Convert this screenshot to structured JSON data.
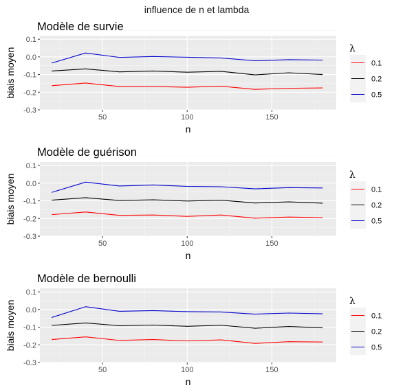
{
  "figure": {
    "title": "influence de n et lambda"
  },
  "chart_data": [
    {
      "type": "line",
      "title": "Modèle de survie",
      "xlabel": "n",
      "ylabel": "biais moyen",
      "x": [
        20,
        40,
        60,
        80,
        100,
        120,
        140,
        160,
        180
      ],
      "xticks": [
        50,
        100,
        150
      ],
      "yticks": [
        0.1,
        0.0,
        -0.1,
        -0.2,
        -0.3
      ],
      "ytick_labels": [
        "0.1",
        "0.0",
        "-0.1",
        "-0.2",
        "-0.3"
      ],
      "xlim": [
        13,
        188
      ],
      "ylim": [
        -0.3,
        0.12
      ],
      "grid": true,
      "legend": {
        "title": "λ",
        "position": "right"
      },
      "series": [
        {
          "name": "0.1",
          "color": "#ff0000",
          "values": [
            -0.163,
            -0.148,
            -0.168,
            -0.168,
            -0.172,
            -0.166,
            -0.184,
            -0.178,
            -0.176
          ]
        },
        {
          "name": "0.2",
          "color": "#000000",
          "values": [
            -0.08,
            -0.068,
            -0.085,
            -0.08,
            -0.087,
            -0.082,
            -0.102,
            -0.09,
            -0.1
          ]
        },
        {
          "name": "0.5",
          "color": "#0000cc",
          "values": [
            -0.035,
            0.022,
            -0.003,
            0.002,
            -0.002,
            -0.006,
            -0.022,
            -0.016,
            -0.018
          ]
        }
      ]
    },
    {
      "type": "line",
      "title": "Modèle de guérison",
      "xlabel": "n",
      "ylabel": "biais moyen",
      "x": [
        20,
        40,
        60,
        80,
        100,
        120,
        140,
        160,
        180
      ],
      "xticks": [
        50,
        100,
        150
      ],
      "yticks": [
        0.1,
        0.0,
        -0.1,
        -0.2,
        -0.3
      ],
      "ytick_labels": [
        "0.1",
        "0.0",
        "-0.1",
        "-0.2",
        "-0.3"
      ],
      "xlim": [
        13,
        188
      ],
      "ylim": [
        -0.3,
        0.12
      ],
      "grid": true,
      "legend": {
        "title": "λ",
        "position": "right"
      },
      "series": [
        {
          "name": "0.1",
          "color": "#ff0000",
          "values": [
            -0.178,
            -0.163,
            -0.182,
            -0.18,
            -0.188,
            -0.18,
            -0.198,
            -0.192,
            -0.195
          ]
        },
        {
          "name": "0.2",
          "color": "#000000",
          "values": [
            -0.096,
            -0.082,
            -0.098,
            -0.094,
            -0.101,
            -0.096,
            -0.112,
            -0.106,
            -0.113
          ]
        },
        {
          "name": "0.5",
          "color": "#0000cc",
          "values": [
            -0.052,
            0.006,
            -0.016,
            -0.01,
            -0.018,
            -0.02,
            -0.032,
            -0.025,
            -0.027
          ]
        }
      ]
    },
    {
      "type": "line",
      "title": "Modèle de bernoulli",
      "xlabel": "n",
      "ylabel": "biais moyen",
      "x": [
        20,
        40,
        60,
        80,
        100,
        120,
        140,
        160,
        180
      ],
      "xticks": [
        50,
        100,
        150
      ],
      "yticks": [
        0.1,
        0.0,
        -0.1,
        -0.2,
        -0.3
      ],
      "ytick_labels": [
        "0.1",
        "0.0",
        "-0.1",
        "-0.2",
        "-0.3"
      ],
      "xlim": [
        13,
        188
      ],
      "ylim": [
        -0.3,
        0.12
      ],
      "grid": true,
      "legend": {
        "title": "λ",
        "position": "right"
      },
      "series": [
        {
          "name": "0.1",
          "color": "#ff0000",
          "values": [
            -0.17,
            -0.155,
            -0.175,
            -0.17,
            -0.178,
            -0.172,
            -0.192,
            -0.182,
            -0.184
          ]
        },
        {
          "name": "0.2",
          "color": "#000000",
          "values": [
            -0.09,
            -0.076,
            -0.092,
            -0.088,
            -0.095,
            -0.089,
            -0.106,
            -0.096,
            -0.104
          ]
        },
        {
          "name": "0.5",
          "color": "#0000cc",
          "values": [
            -0.045,
            0.016,
            -0.01,
            -0.006,
            -0.012,
            -0.014,
            -0.026,
            -0.02,
            -0.024
          ]
        }
      ]
    }
  ]
}
